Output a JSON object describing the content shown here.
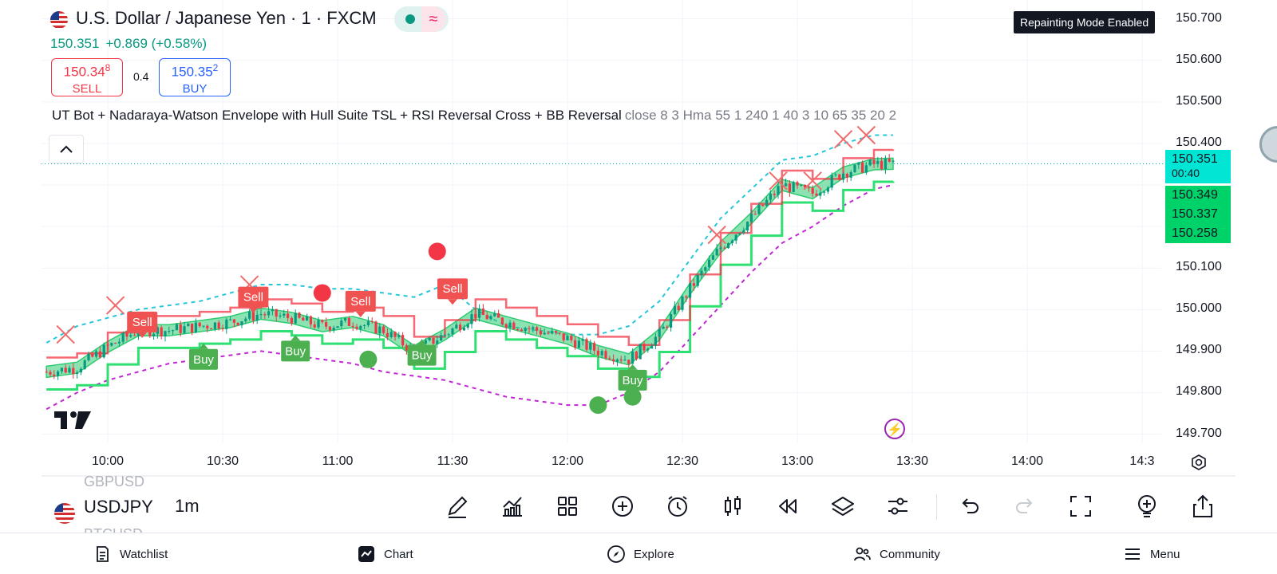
{
  "header": {
    "title": "U.S. Dollar / Japanese Yen · 1 · FXCM",
    "price": "150.351",
    "change": "+0.869 (+0.58%)",
    "sell": {
      "price": "150.348",
      "price_main": "150.34",
      "price_sup": "8",
      "label": "SELL"
    },
    "buy": {
      "price": "150.352",
      "price_main": "150.35",
      "price_sup": "2",
      "label": "BUY"
    },
    "spread": "0.4"
  },
  "indicator": {
    "name": "UT Bot + Nadaraya-Watson Envelope with Hull Suite TSL + RSI Reversal Cross + BB Reversal",
    "args": "close 8 3 Hma 55 1 240 1 40 3 10 65 35 20 2"
  },
  "repaint_badge": "Repainting Mode Enabled",
  "price_axis": {
    "labels": [
      "150.700",
      "150.600",
      "150.500",
      "150.400",
      "150.100",
      "150.000",
      "149.900",
      "149.800",
      "149.700"
    ],
    "current": "150.351",
    "countdown": "00:40",
    "tags": [
      "150.349",
      "150.337",
      "150.258"
    ]
  },
  "time_axis": [
    "10:00",
    "10:30",
    "11:00",
    "11:30",
    "12:00",
    "12:30",
    "13:00",
    "13:30",
    "14:00",
    "14:3"
  ],
  "chart_data": {
    "type": "line",
    "x": [
      "09:44",
      "09:52",
      "10:00",
      "10:08",
      "10:16",
      "10:24",
      "10:32",
      "10:40",
      "10:48",
      "10:56",
      "11:04",
      "11:12",
      "11:20",
      "11:28",
      "11:36",
      "11:44",
      "11:52",
      "12:00",
      "12:08",
      "12:16",
      "12:24",
      "12:32",
      "12:40",
      "12:48",
      "12:56",
      "13:04",
      "13:12",
      "13:20",
      "13:25"
    ],
    "series": [
      {
        "values": [
          149.85,
          149.86,
          149.91,
          149.95,
          149.95,
          149.96,
          149.97,
          149.99,
          149.98,
          149.96,
          149.97,
          149.95,
          149.9,
          149.94,
          149.99,
          149.97,
          149.95,
          149.93,
          149.9,
          149.88,
          149.94,
          150.05,
          150.15,
          150.22,
          150.3,
          150.28,
          150.33,
          150.35,
          150.351
        ]
      },
      {
        "values": [
          149.92,
          149.96,
          149.98,
          150.0,
          150.01,
          150.02,
          150.04,
          150.06,
          150.06,
          150.05,
          150.05,
          150.04,
          150.03,
          150.06,
          150.0,
          149.96,
          149.95,
          149.94,
          149.94,
          149.96,
          150.02,
          150.12,
          150.22,
          150.29,
          150.36,
          150.37,
          150.4,
          150.42,
          150.42
        ]
      },
      {
        "values": [
          149.76,
          149.8,
          149.83,
          149.85,
          149.87,
          149.88,
          149.89,
          149.9,
          149.89,
          149.88,
          149.87,
          149.85,
          149.84,
          149.83,
          149.81,
          149.79,
          149.78,
          149.77,
          149.77,
          149.8,
          149.85,
          149.93,
          150.01,
          150.09,
          150.16,
          150.2,
          150.25,
          150.29,
          150.3
        ]
      }
    ],
    "ylim": [
      149.68,
      150.73
    ],
    "signals": [
      {
        "type": "Sell",
        "x": "10:09",
        "y": 149.97
      },
      {
        "type": "Buy",
        "x": "10:25",
        "y": 149.88
      },
      {
        "type": "Sell",
        "x": "10:38",
        "y": 150.03
      },
      {
        "type": "Buy",
        "x": "10:49",
        "y": 149.9
      },
      {
        "type": "Sell",
        "x": "11:06",
        "y": 150.02
      },
      {
        "type": "Buy",
        "x": "11:22",
        "y": 149.89
      },
      {
        "type": "Sell",
        "x": "11:30",
        "y": 150.05
      },
      {
        "type": "Buy",
        "x": "12:17",
        "y": 149.83
      }
    ],
    "reversal_marks": [
      {
        "x": "09:49",
        "y": 149.94
      },
      {
        "x": "10:02",
        "y": 150.01
      },
      {
        "x": "10:37",
        "y": 150.06
      },
      {
        "x": "12:39",
        "y": 150.18
      },
      {
        "x": "12:55",
        "y": 150.31
      },
      {
        "x": "13:04",
        "y": 150.31
      },
      {
        "x": "13:12",
        "y": 150.41
      },
      {
        "x": "13:18",
        "y": 150.42
      }
    ],
    "dots": [
      {
        "x": "10:56",
        "y": 150.04,
        "color": "#f23645"
      },
      {
        "x": "11:26",
        "y": 150.14,
        "color": "#f23645"
      },
      {
        "x": "11:08",
        "y": 149.88,
        "color": "#4caf50"
      },
      {
        "x": "12:08",
        "y": 149.77,
        "color": "#4caf50"
      },
      {
        "x": "12:17",
        "y": 149.79,
        "color": "#4caf50"
      }
    ]
  },
  "toolbar": {
    "symbol_prev": "GBPUSD",
    "symbol": "USDJPY",
    "symbol_next": "BTCUSD",
    "timeframe": "1m"
  },
  "bottom_nav": [
    {
      "label": "Watchlist",
      "icon": "watchlist-icon"
    },
    {
      "label": "Chart",
      "icon": "chart-icon"
    },
    {
      "label": "Explore",
      "icon": "compass-icon"
    },
    {
      "label": "Community",
      "icon": "community-icon"
    },
    {
      "label": "Menu",
      "icon": "menu-icon"
    }
  ],
  "colors": {
    "up": "#089981",
    "down": "#f23645",
    "envelope_upper": "#26c6da",
    "envelope_lower": "#c026d3",
    "hull_band": "#2ecc71",
    "buy_signal": "#4caf50",
    "sell_signal": "#f05252"
  }
}
